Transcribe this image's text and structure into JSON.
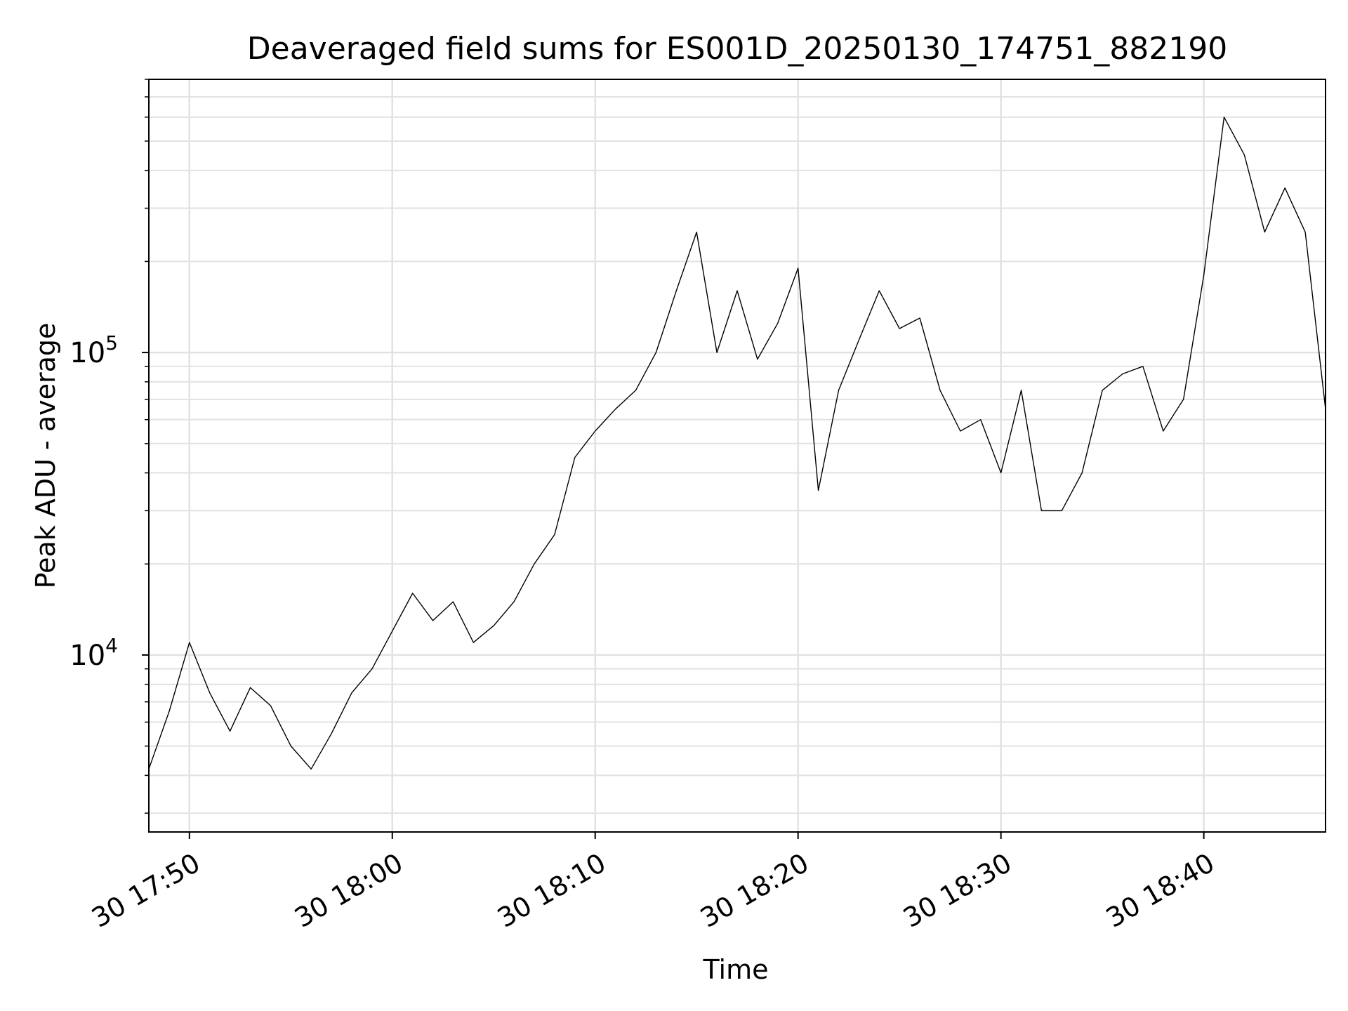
{
  "chart_data": {
    "type": "line",
    "title": "Deaveraged field sums for ES001D_20250130_174751_882190",
    "xlabel": "Time",
    "ylabel": "Peak ADU - average",
    "y_scale": "log",
    "ylim": [
      2600,
      800000
    ],
    "x_range_minutes": [
      "17:48",
      "18:46"
    ],
    "x_ticks": [
      {
        "time": "17:50",
        "label": "30 17:50"
      },
      {
        "time": "18:00",
        "label": "30 18:00"
      },
      {
        "time": "18:10",
        "label": "30 18:10"
      },
      {
        "time": "18:20",
        "label": "30 18:20"
      },
      {
        "time": "18:30",
        "label": "30 18:30"
      },
      {
        "time": "18:40",
        "label": "30 18:40"
      }
    ],
    "y_ticks": [
      {
        "value": 10000,
        "base": "10",
        "exp": "4"
      },
      {
        "value": 100000,
        "base": "10",
        "exp": "5"
      }
    ],
    "grid": "major-and-minor",
    "line_color": "#000000",
    "series": [
      {
        "x": [
          "17:48",
          "17:49",
          "17:50",
          "17:51",
          "17:52",
          "17:53",
          "17:54",
          "17:55",
          "17:56",
          "17:57",
          "17:58",
          "17:59",
          "18:00",
          "18:01",
          "18:02",
          "18:03",
          "18:04",
          "18:05",
          "18:06",
          "18:07",
          "18:08",
          "18:09",
          "18:10",
          "18:11",
          "18:12",
          "18:13",
          "18:14",
          "18:15",
          "18:16",
          "18:17",
          "18:18",
          "18:19",
          "18:20",
          "18:21",
          "18:22",
          "18:23",
          "18:24",
          "18:25",
          "18:26",
          "18:27",
          "18:28",
          "18:29",
          "18:30",
          "18:31",
          "18:32",
          "18:33",
          "18:34",
          "18:35",
          "18:36",
          "18:37",
          "18:38",
          "18:39",
          "18:40",
          "18:41",
          "18:42",
          "18:43",
          "18:44",
          "18:45",
          "18:46"
        ],
        "y": [
          4200,
          6500,
          11000,
          7500,
          5600,
          7800,
          6800,
          5000,
          4200,
          5500,
          7500,
          9000,
          12000,
          16000,
          13000,
          15000,
          11000,
          12500,
          15000,
          20000,
          25000,
          45000,
          55000,
          65000,
          75000,
          100000,
          160000,
          250000,
          100000,
          160000,
          95000,
          125000,
          190000,
          35000,
          75000,
          110000,
          160000,
          120000,
          130000,
          75000,
          55000,
          60000,
          40000,
          75000,
          30000,
          30000,
          40000,
          75000,
          85000,
          90000,
          55000,
          70000,
          180000,
          600000,
          450000,
          250000,
          350000,
          250000,
          65000
        ]
      }
    ]
  }
}
